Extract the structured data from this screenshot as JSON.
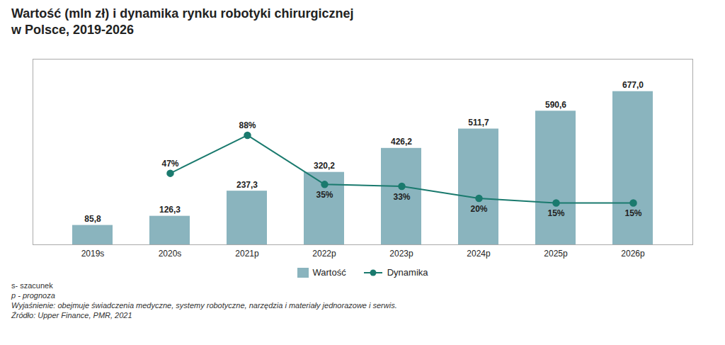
{
  "chart_data": {
    "type": "bar",
    "title": "Wartość (mln zł) i dynamika rynku robotyki chirurgicznej\nw Polsce, 2019-2026",
    "categories": [
      "2019s",
      "2020s",
      "2021p",
      "2022p",
      "2023p",
      "2024p",
      "2025p",
      "2026p"
    ],
    "series": [
      {
        "name": "Wartość",
        "type": "bar",
        "color": "#8ab4be",
        "values": [
          85.8,
          126.3,
          237.3,
          320.2,
          426.2,
          511.7,
          590.6,
          677.0
        ],
        "value_labels": [
          "85,8",
          "126,3",
          "237,3",
          "320,2",
          "426,2",
          "511,7",
          "590,6",
          "677,0"
        ]
      },
      {
        "name": "Dynamika",
        "type": "line",
        "axis": "y2",
        "color": "#1a7a6e",
        "marker": "circle",
        "values": [
          null,
          47,
          88,
          35,
          33,
          20,
          15,
          15
        ],
        "value_labels": [
          null,
          "47%",
          "88%",
          "35%",
          "33%",
          "20%",
          "15%",
          "15%"
        ]
      }
    ],
    "ylim": [
      0,
      820
    ],
    "yticks": [],
    "y2lim": [
      -30,
      170
    ],
    "y2ticks": [],
    "tick_labels": "x",
    "data_labels": true,
    "grid": false,
    "legend": "bottom",
    "annotations": [
      "s- szacunek",
      "p - prognoza",
      "Wyjaśnienie: obejmuje świadczenia medyczne, systemy robotyczne, narzędzia i materiały jednorazowe i serwis.",
      "Źródło: Upper Finance, PMR, 2021"
    ]
  }
}
